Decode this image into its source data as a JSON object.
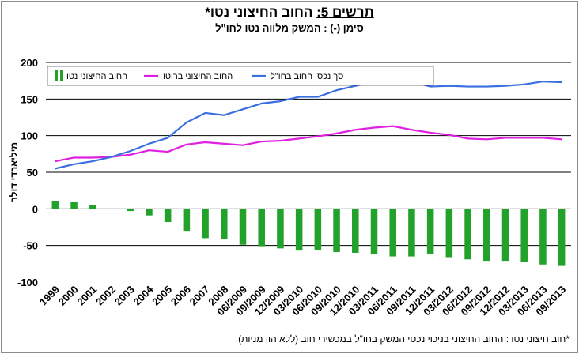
{
  "title": {
    "prefix": "תרשים 5:",
    "main": "החוב החיצוני נטו*"
  },
  "subtitle": "סימן (-) : המשק מלווה נטו לחו\"ל",
  "footnote": "*חוב חיצוני נטו : החוב החיצוני בניכוי נכסי המשק בחו\"ל במכשירי חוב (ללא הון מניות).",
  "colors": {
    "bar": "#22a22a",
    "gross_debt": "#e020e0",
    "assets": "#3a6fe0",
    "grid": "#000000"
  },
  "chart_data": {
    "type": "bar",
    "ylabel": "מיליארדי דולר",
    "ylim": [
      -100,
      200
    ],
    "yticks": [
      -100,
      -50,
      0,
      50,
      100,
      150,
      200
    ],
    "categories": [
      "1999",
      "2000",
      "2001",
      "2002",
      "2003",
      "2004",
      "2005",
      "2006",
      "2007",
      "2008",
      "06/2009",
      "09/2009",
      "12/2009",
      "03/2010",
      "06/2010",
      "09/2010",
      "12/2010",
      "03/2011",
      "06/2011",
      "09/2011",
      "12/2011",
      "03/2012",
      "06/2012",
      "09/2012",
      "12/2012",
      "03/2013",
      "06/2013",
      "09/2013"
    ],
    "legend": [
      "סך נכסי החוב בחו\"ל",
      "החוב החיצוני ברוטו",
      "החוב החיצוני נטו"
    ],
    "legend_position": "top",
    "series": [
      {
        "name": "החוב החיצוני נטו",
        "kind": "bar",
        "values": [
          11,
          9,
          5,
          0,
          -3,
          -9,
          -18,
          -30,
          -40,
          -41,
          -49,
          -51,
          -54,
          -57,
          -56,
          -59,
          -60,
          -62,
          -65,
          -65,
          -62,
          -66,
          -69,
          -71,
          -71,
          -73,
          -76,
          -78
        ]
      },
      {
        "name": "החוב החיצוני ברוטו",
        "kind": "line",
        "values": [
          65,
          70,
          70,
          71,
          74,
          80,
          78,
          88,
          91,
          89,
          87,
          92,
          93,
          96,
          99,
          103,
          108,
          111,
          113,
          108,
          104,
          101,
          96,
          95,
          97,
          97,
          97,
          95
        ]
      },
      {
        "name": "סך נכסי החוב בחו\"ל",
        "kind": "line",
        "values": [
          55,
          61,
          65,
          71,
          79,
          89,
          97,
          118,
          131,
          128,
          136,
          144,
          147,
          153,
          153,
          162,
          168,
          174,
          179,
          174,
          167,
          168,
          167,
          167,
          168,
          170,
          174,
          173
        ]
      }
    ]
  }
}
